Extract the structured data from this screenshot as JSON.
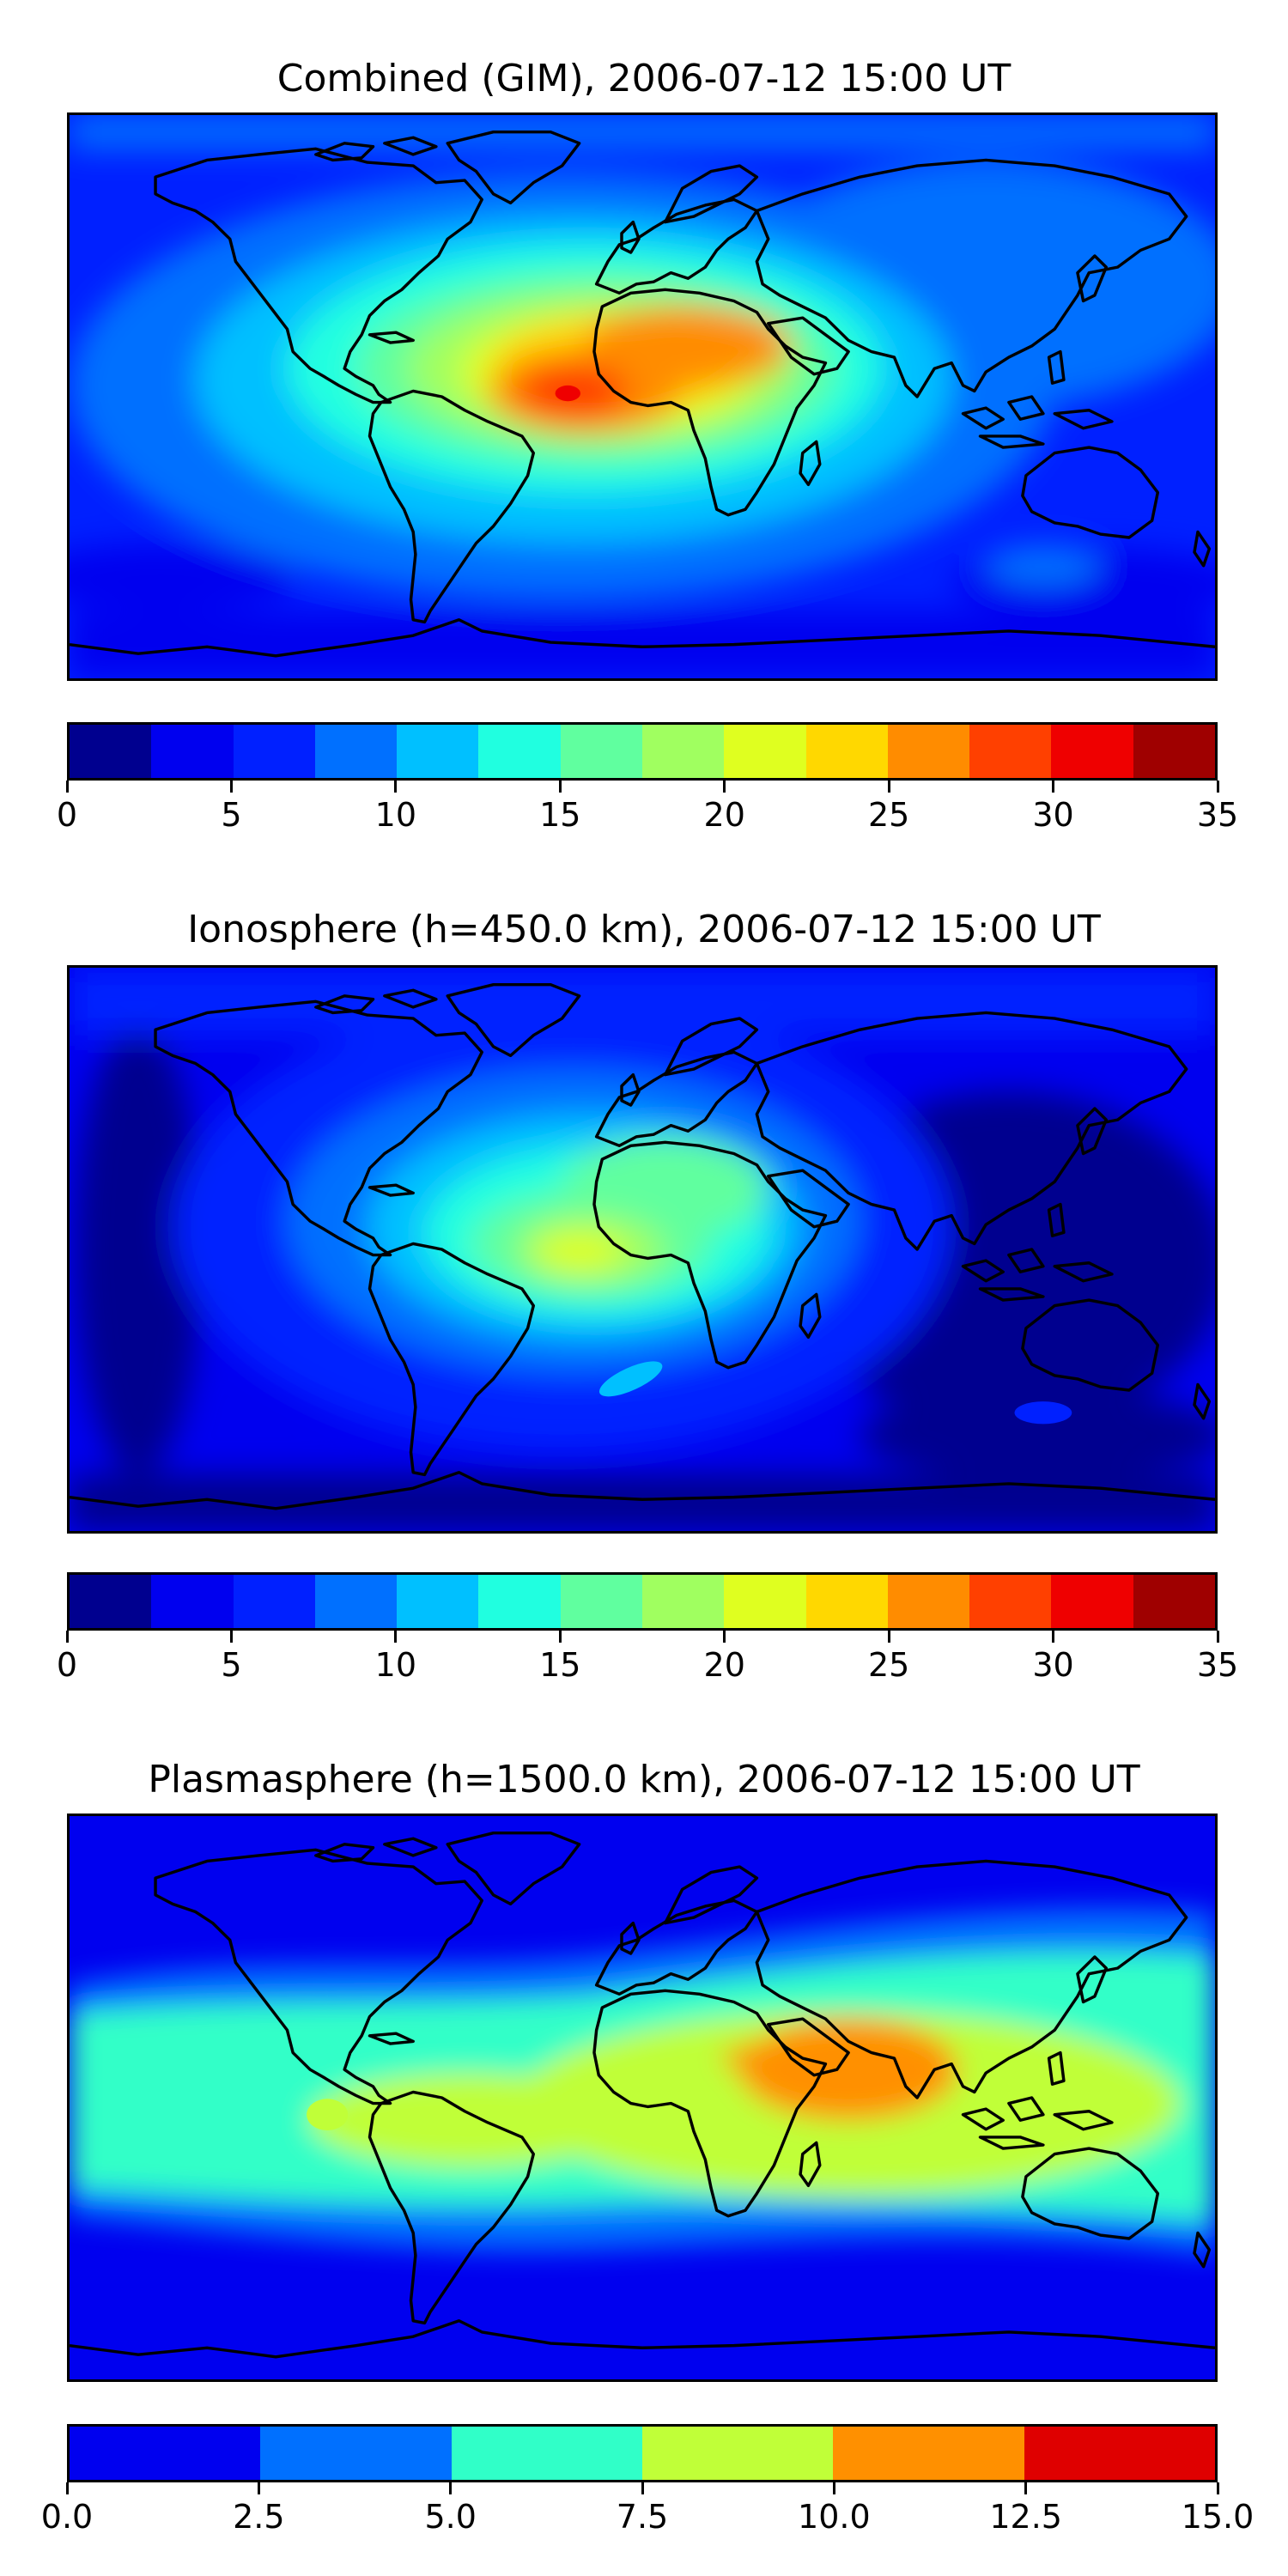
{
  "chart_data": [
    {
      "type": "heatmap",
      "title": "Combined (GIM), 2006-07-12 15:00 UT",
      "projection": "equirectangular world map with coastlines",
      "colormap": "jet",
      "levels": [
        0,
        2.5,
        5,
        7.5,
        10,
        12.5,
        15,
        17.5,
        20,
        22.5,
        25,
        27.5,
        30,
        32.5,
        35
      ],
      "colors": [
        "#00008f",
        "#0000ef",
        "#0020ff",
        "#0070ff",
        "#00c0ff",
        "#20ffe0",
        "#60ff9f",
        "#a0ff60",
        "#dfff20",
        "#ffd800",
        "#ff8c00",
        "#ff4000",
        "#ef0000",
        "#9f0000"
      ],
      "colorbar_ticks": [
        "0",
        "5",
        "10",
        "15",
        "20",
        "25",
        "30",
        "35"
      ],
      "colorbar_tick_values": [
        0,
        5,
        10,
        15,
        20,
        25,
        30,
        35
      ],
      "peak": {
        "location": "equatorial Atlantic off west Africa",
        "value": 31
      }
    },
    {
      "type": "heatmap",
      "title": "Ionosphere  (h=450.0 km), 2006-07-12 15:00 UT",
      "projection": "equirectangular world map with coastlines",
      "colormap": "jet",
      "levels": [
        0,
        2.5,
        5,
        7.5,
        10,
        12.5,
        15,
        17.5,
        20,
        22.5,
        25,
        27.5,
        30,
        32.5,
        35
      ],
      "colors": [
        "#00008f",
        "#0000ef",
        "#0020ff",
        "#0070ff",
        "#00c0ff",
        "#20ffe0",
        "#60ff9f",
        "#a0ff60",
        "#dfff20",
        "#ffd800",
        "#ff8c00",
        "#ff4000",
        "#ef0000",
        "#9f0000"
      ],
      "colorbar_ticks": [
        "0",
        "5",
        "10",
        "15",
        "20",
        "25",
        "30",
        "35"
      ],
      "colorbar_tick_values": [
        0,
        5,
        10,
        15,
        20,
        25,
        30,
        35
      ],
      "peak": {
        "location": "equatorial Atlantic east of Brazil",
        "value": 21
      }
    },
    {
      "type": "heatmap",
      "title": "Plasmasphere (h=1500.0 km), 2006-07-12 15:00 UT",
      "projection": "equirectangular world map with coastlines",
      "colormap": "jet",
      "levels": [
        0,
        2.5,
        5,
        7.5,
        10,
        12.5,
        15
      ],
      "colors": [
        "#0000ef",
        "#0070ff",
        "#30ffc8",
        "#c0ff38",
        "#ff9000",
        "#df0000"
      ],
      "colorbar_ticks": [
        "0.0",
        "2.5",
        "5.0",
        "7.5",
        "10.0",
        "12.5",
        "15.0"
      ],
      "colorbar_tick_values": [
        0,
        2.5,
        5,
        7.5,
        10,
        12.5,
        15
      ],
      "peak": {
        "location": "Arabian Sea / India",
        "value": 10.5
      }
    }
  ]
}
